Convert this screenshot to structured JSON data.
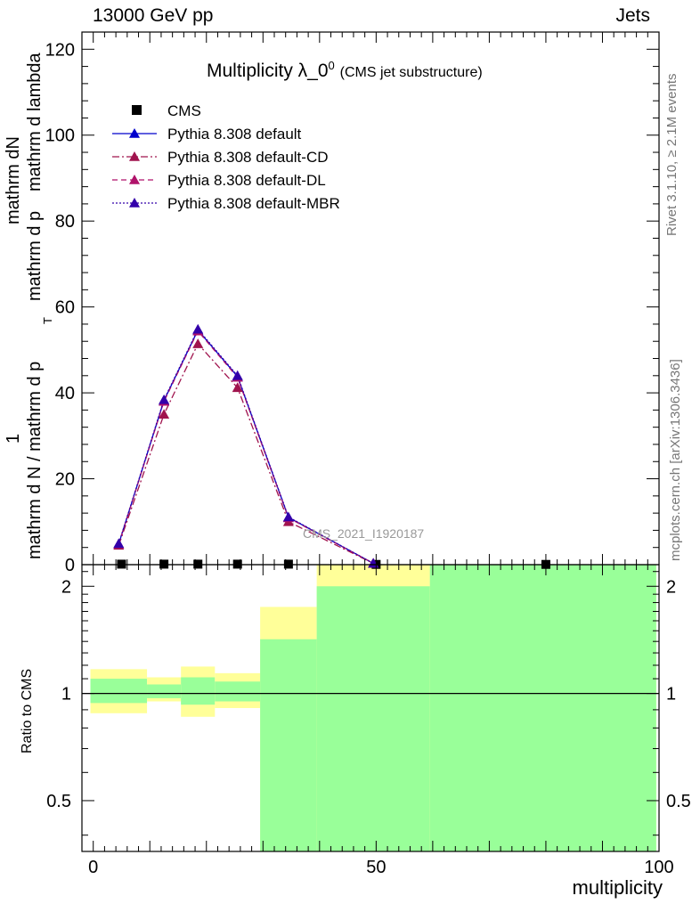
{
  "header": {
    "energy": "13000 GeV pp",
    "process": "Jets",
    "title_main": "Multiplicity λ_0",
    "title_sup": "0",
    "title_sub": "(CMS jet substructure)",
    "watermark": "CMS_2021_I1920187",
    "side_rivet": "Rivet 3.1.10, ≥ 2.1M events",
    "side_mcplots": "mcplots.cern.ch [arXiv:1306.3436]"
  },
  "axes": {
    "ylabel_top_numerator": "mathrm dN",
    "ylabel_top_denominator": "mathrm d N / mathrm d p",
    "ylabel_top_subscript": "T",
    "ylabel_top_rest": "mathrm d p",
    "ylabel_top_rest2": "mathrm d lambda",
    "ylabel_one": "1",
    "ratio_ylabel": "Ratio to CMS",
    "xlabel": "multiplicity"
  },
  "chart_data": {
    "type": "line",
    "x_range": [
      -2,
      100
    ],
    "y_range_main": [
      0,
      124
    ],
    "y_ticks_main": [
      "0",
      "20",
      "40",
      "60",
      "80",
      "100",
      "120"
    ],
    "y_range_ratio": [
      0.36,
      2.3
    ],
    "y_ticks_ratio": [
      "0.5",
      "1",
      "2"
    ],
    "x_ticks": [
      "0",
      "50",
      "100"
    ],
    "series": [
      {
        "name": "CMS",
        "marker": "square",
        "color": "#000000",
        "x": [
          5,
          12.5,
          18.5,
          25.5,
          34.5,
          50,
          80
        ],
        "y": [
          0.12,
          0.12,
          0.12,
          0.12,
          0.12,
          0.06,
          0.06
        ]
      },
      {
        "name": "Pythia 8.308 default",
        "marker": "triangle",
        "color": "#0000cc",
        "dash": "",
        "x": [
          4.5,
          12.5,
          18.5,
          25.5,
          34.5,
          49.5
        ],
        "y": [
          4.8,
          38.2,
          54.6,
          43.8,
          11.0,
          0.3
        ]
      },
      {
        "name": "Pythia 8.308 default-CD",
        "marker": "triangle",
        "color": "#a0144e",
        "dash": "8,3,2,3",
        "x": [
          4.5,
          12.5,
          18.5,
          25.5,
          34.5,
          49.5
        ],
        "y": [
          4.5,
          35.0,
          51.4,
          41.2,
          10.0,
          0.3
        ]
      },
      {
        "name": "Pythia 8.308 default-DL",
        "marker": "triangle",
        "color": "#b0126a",
        "dash": "6,4",
        "x": [
          4.5,
          12.5,
          18.5,
          25.5,
          34.5,
          49.5
        ],
        "y": [
          4.8,
          38.0,
          54.4,
          43.6,
          10.9,
          0.3
        ]
      },
      {
        "name": "Pythia 8.308 default-MBR",
        "marker": "triangle",
        "color": "#3300aa",
        "dash": "2,2",
        "x": [
          4.5,
          12.5,
          18.5,
          25.5,
          34.5,
          49.5
        ],
        "y": [
          4.9,
          38.4,
          54.8,
          44.0,
          11.1,
          0.3
        ]
      }
    ],
    "ratio_bands": [
      {
        "x0": -0.5,
        "x1": 9.5,
        "inner": [
          0.94,
          1.1
        ],
        "outer": [
          0.88,
          1.17
        ]
      },
      {
        "x0": 9.5,
        "x1": 15.5,
        "inner": [
          0.97,
          1.06
        ],
        "outer": [
          0.95,
          1.11
        ]
      },
      {
        "x0": 15.5,
        "x1": 21.5,
        "inner": [
          0.93,
          1.11
        ],
        "outer": [
          0.86,
          1.19
        ]
      },
      {
        "x0": 21.5,
        "x1": 29.5,
        "inner": [
          0.95,
          1.08
        ],
        "outer": [
          0.91,
          1.14
        ]
      },
      {
        "x0": 29.5,
        "x1": 39.5,
        "inner": [
          0.36,
          1.42
        ],
        "outer": [
          0.36,
          1.75
        ]
      },
      {
        "x0": 39.5,
        "x1": 59.5,
        "inner": [
          0.36,
          2.0
        ],
        "outer": [
          0.36,
          2.3
        ]
      },
      {
        "x0": 59.5,
        "x1": 99.5,
        "inner": [
          0.36,
          2.3
        ],
        "outer": [
          0.36,
          2.3
        ]
      }
    ],
    "band_colors": {
      "inner": "#99ff99",
      "outer": "#ffff99"
    }
  }
}
